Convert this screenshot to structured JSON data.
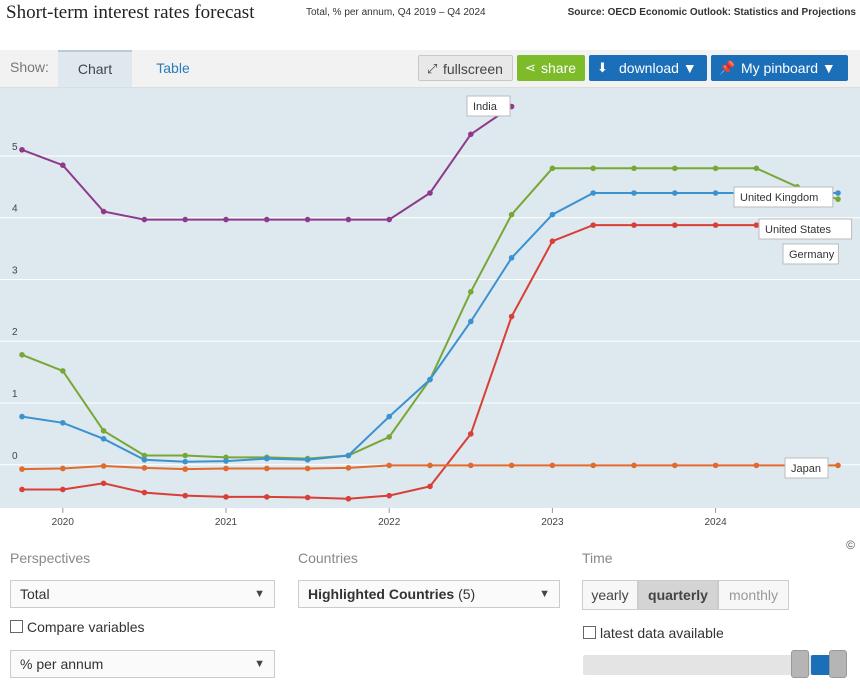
{
  "header": {
    "title": "Short-term interest rates forecast",
    "subtitle": "Total, % per annum, Q4 2019 – Q4 2024",
    "source": "Source: OECD Economic Outlook: Statistics and Projections"
  },
  "toolbar": {
    "show_label": "Show:",
    "tab_chart": "Chart",
    "tab_table": "Table",
    "fullscreen": "fullscreen",
    "share": "share",
    "download": "download ▼",
    "pinboard": "My pinboard ▼"
  },
  "controls": {
    "perspectives_label": "Perspectives",
    "perspective_value": "Total",
    "compare_label": "Compare variables",
    "unit_value": "% per annum",
    "countries_label": "Countries",
    "countries_value": "Highlighted Countries",
    "countries_count": "(5)",
    "time_label": "Time",
    "time_yearly": "yearly",
    "time_quarterly": "quarterly",
    "time_monthly": "monthly",
    "latest_label": "latest data available",
    "copyright": "©"
  },
  "chart_data": {
    "type": "line",
    "ylim": [
      -0.7,
      6.1
    ],
    "yticks": [
      0,
      1,
      2,
      3,
      4,
      5
    ],
    "x_range": [
      "2019Q4",
      "2024Q4"
    ],
    "x_tick_labels": [
      "2020",
      "2021",
      "2022",
      "2023",
      "2024"
    ],
    "x": [
      "2019Q4",
      "2020Q1",
      "2020Q2",
      "2020Q3",
      "2020Q4",
      "2021Q1",
      "2021Q2",
      "2021Q3",
      "2021Q4",
      "2022Q1",
      "2022Q2",
      "2022Q3",
      "2022Q4",
      "2023Q1",
      "2023Q2",
      "2023Q3",
      "2023Q4",
      "2024Q1",
      "2024Q2",
      "2024Q3",
      "2024Q4"
    ],
    "grid": true,
    "series": [
      {
        "name": "India",
        "color": "#8e3a8c",
        "values": [
          5.1,
          4.85,
          4.1,
          3.97,
          3.97,
          3.97,
          3.97,
          3.97,
          3.97,
          3.97,
          4.4,
          5.35,
          5.8,
          null,
          null,
          null,
          null,
          null,
          null,
          null,
          null
        ]
      },
      {
        "name": "United Kingdom",
        "color": "#78a736",
        "values": [
          1.78,
          1.52,
          0.55,
          0.15,
          0.15,
          0.12,
          0.12,
          0.1,
          0.15,
          0.45,
          1.38,
          2.8,
          4.05,
          4.8,
          4.8,
          4.8,
          4.8,
          4.8,
          4.8,
          4.5,
          4.3
        ]
      },
      {
        "name": "United States",
        "color": "#3b92d0",
        "values": [
          0.78,
          0.68,
          0.42,
          0.08,
          0.05,
          0.06,
          0.1,
          0.08,
          0.15,
          0.78,
          1.38,
          2.32,
          3.35,
          4.05,
          4.4,
          4.4,
          4.4,
          4.4,
          4.4,
          4.4,
          4.4
        ]
      },
      {
        "name": "Germany",
        "color": "#d93f36",
        "values": [
          -0.4,
          -0.4,
          -0.3,
          -0.45,
          -0.5,
          -0.52,
          -0.52,
          -0.53,
          -0.55,
          -0.5,
          -0.35,
          0.5,
          2.4,
          3.62,
          3.88,
          3.88,
          3.88,
          3.88,
          3.88,
          3.88,
          3.88
        ]
      },
      {
        "name": "Japan",
        "color": "#e06b2d",
        "values": [
          -0.07,
          -0.06,
          -0.02,
          -0.05,
          -0.07,
          -0.06,
          -0.06,
          -0.06,
          -0.05,
          -0.01,
          -0.01,
          -0.01,
          -0.01,
          -0.01,
          -0.01,
          -0.01,
          -0.01,
          -0.01,
          -0.01,
          -0.01,
          -0.01
        ]
      }
    ]
  }
}
